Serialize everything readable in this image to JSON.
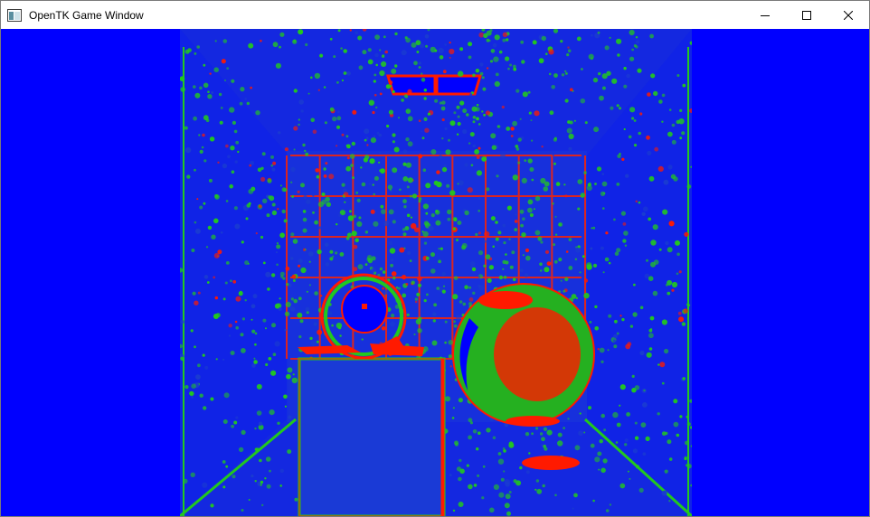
{
  "window": {
    "title": "OpenTK Game Window",
    "icon": "app-window-icon"
  },
  "caption_buttons": {
    "minimize_icon": "minimize-icon",
    "maximize_icon": "maximize-icon",
    "close_icon": "close-icon"
  },
  "client": {
    "background_color": "#0000ff"
  },
  "render": {
    "palette": {
      "background": "#0a1ee6",
      "low": "#1a3cd0",
      "mid": "#22c81e",
      "high": "#ff1a00",
      "hole": "#0000ff"
    }
  }
}
